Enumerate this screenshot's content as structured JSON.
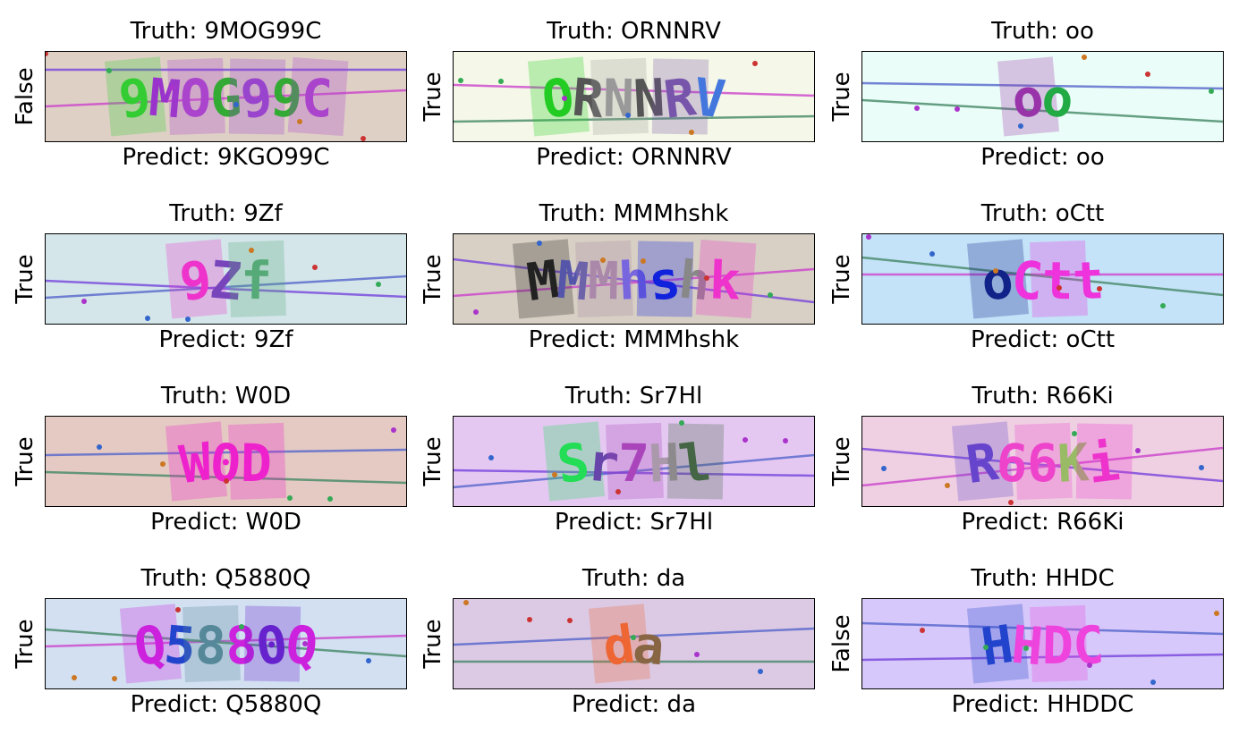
{
  "panels": [
    {
      "truth": "Truth: 9MOG99C",
      "predict": "Predict: 9KGO99C",
      "result": "False",
      "captcha": {
        "bg": "#dfd0c6",
        "chars": [
          "9",
          "M",
          "O",
          "G",
          "9",
          "9",
          "C"
        ],
        "colors": [
          "#33cc33",
          "#9933cc",
          "#aa44cc",
          "#33aa33",
          "#9944cc",
          "#33aa33",
          "#aa44cc"
        ]
      }
    },
    {
      "truth": "Truth: ORNNRV",
      "predict": "Predict: ORNNRV",
      "result": "True",
      "captcha": {
        "bg": "#f5f8e8",
        "chars": [
          "O",
          "R",
          "N",
          "N",
          "R",
          "V"
        ],
        "colors": [
          "#22cc22",
          "#555555",
          "#999999",
          "#555555",
          "#7755aa",
          "#4477dd"
        ]
      }
    },
    {
      "truth": "Truth: oo",
      "predict": "Predict: oo",
      "result": "True",
      "captcha": {
        "bg": "#eafdf8",
        "chars": [
          "o",
          "o"
        ],
        "colors": [
          "#9933aa",
          "#22aa44"
        ]
      }
    },
    {
      "truth": "Truth: 9Zf",
      "predict": "Predict: 9Zf",
      "result": "True",
      "captcha": {
        "bg": "#d4e6ea",
        "chars": [
          "9",
          "Z",
          "f"
        ],
        "colors": [
          "#ee33cc",
          "#7744bb",
          "#55aa77"
        ]
      }
    },
    {
      "truth": "Truth: MMMhshk",
      "predict": "Predict: MMMhshk",
      "result": "True",
      "captcha": {
        "bg": "#d8d0c4",
        "chars": [
          "M",
          "M",
          "M",
          "h",
          "s",
          "h",
          "k"
        ],
        "colors": [
          "#222222",
          "#5555aa",
          "#aa88aa",
          "#7766dd",
          "#1122dd",
          "#888888",
          "#ee33cc"
        ]
      }
    },
    {
      "truth": "Truth: oCtt",
      "predict": "Predict: oCtt",
      "result": "True",
      "captcha": {
        "bg": "#c4e2f8",
        "chars": [
          "o",
          "C",
          "t",
          "t"
        ],
        "colors": [
          "#112288",
          "#ee33dd",
          "#ee33dd",
          "#ee33dd"
        ]
      }
    },
    {
      "truth": "Truth: W0D",
      "predict": "Predict: W0D",
      "result": "True",
      "captcha": {
        "bg": "#e4cac2",
        "chars": [
          "W",
          "0",
          "D"
        ],
        "colors": [
          "#ee22cc",
          "#ee22cc",
          "#ee22cc"
        ]
      }
    },
    {
      "truth": "Truth: Sr7Hl",
      "predict": "Predict: Sr7Hl",
      "result": "True",
      "captcha": {
        "bg": "#e4c8f2",
        "chars": [
          "S",
          "r",
          "7",
          "H",
          "l"
        ],
        "colors": [
          "#22dd55",
          "#6644aa",
          "#aa44bb",
          "#aa99aa",
          "#446644"
        ]
      }
    },
    {
      "truth": "Truth: R66Ki",
      "predict": "Predict: R66Ki",
      "result": "True",
      "captcha": {
        "bg": "#efd0e2",
        "chars": [
          "R",
          "6",
          "6",
          "K",
          "i"
        ],
        "colors": [
          "#6644cc",
          "#ee44cc",
          "#ee44cc",
          "#99bb66",
          "#ee33cc"
        ]
      }
    },
    {
      "truth": "Truth: Q5880Q",
      "predict": "Predict: Q5880Q",
      "result": "True",
      "captcha": {
        "bg": "#d2e0f2",
        "chars": [
          "Q",
          "5",
          "8",
          "8",
          "0",
          "Q"
        ],
        "colors": [
          "#cc22dd",
          "#2244cc",
          "#558899",
          "#cc22dd",
          "#6622cc",
          "#cc22dd"
        ]
      }
    },
    {
      "truth": "Truth: da",
      "predict": "Predict: da",
      "result": "True",
      "captcha": {
        "bg": "#dccae4",
        "chars": [
          "d",
          "a"
        ],
        "colors": [
          "#ee6633",
          "#886644"
        ]
      }
    },
    {
      "truth": "Truth: HHDC",
      "predict": "Predict: HHDDC",
      "result": "False",
      "captcha": {
        "bg": "#d6c8fa",
        "chars": [
          "H",
          "H",
          "D",
          "C"
        ],
        "colors": [
          "#2244cc",
          "#ee44dd",
          "#ee44dd",
          "#ee44dd"
        ]
      }
    }
  ]
}
